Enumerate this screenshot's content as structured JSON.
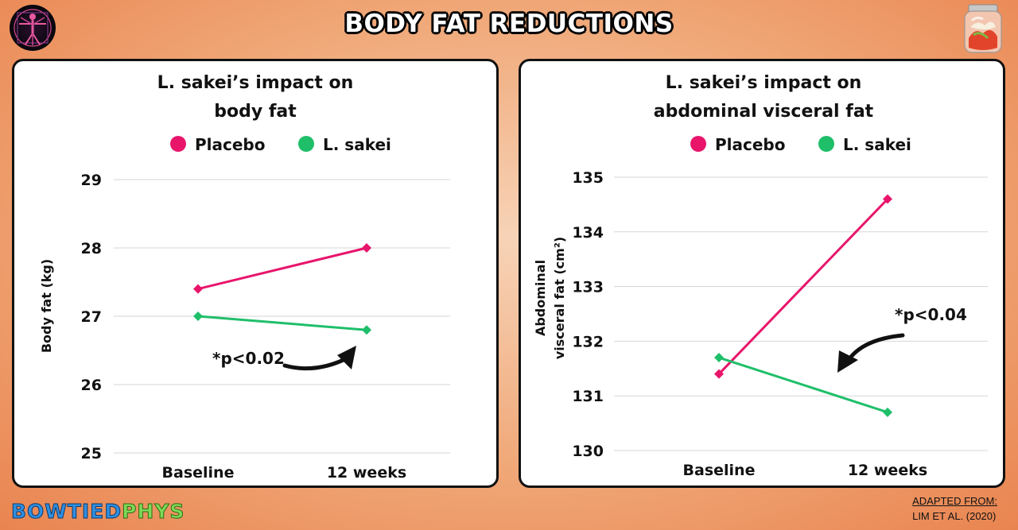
{
  "page": {
    "title": "BODY FAT REDUCTIONS"
  },
  "colors": {
    "placebo": "#e8156b",
    "lsakei": "#1fbf6a"
  },
  "branding": {
    "part1": "BOWTIED",
    "part2": "PHYS"
  },
  "credit": {
    "line1": "ADAPTED FROM:",
    "line2": "LIM ET AL. (2020)"
  },
  "chart_data": [
    {
      "type": "line",
      "title_lines": [
        "L. sakei’s impact on",
        "body fat"
      ],
      "categories": [
        "Baseline",
        "12 weeks"
      ],
      "series": [
        {
          "name": "Placebo",
          "values": [
            27.4,
            28.0
          ]
        },
        {
          "name": "L. sakei",
          "values": [
            27.0,
            26.8
          ]
        }
      ],
      "ylabel_lines": [
        "Body fat (kg)"
      ],
      "xlabel": "",
      "ylim": [
        25,
        29
      ],
      "yticks": [
        25,
        26,
        27,
        28,
        29
      ],
      "grid": true,
      "legend": "top",
      "annotation": "*p<0.02"
    },
    {
      "type": "line",
      "title_lines": [
        "L. sakei’s impact on",
        "abdominal visceral fat"
      ],
      "categories": [
        "Baseline",
        "12 weeks"
      ],
      "series": [
        {
          "name": "Placebo",
          "values": [
            131.4,
            134.6
          ]
        },
        {
          "name": "L. sakei",
          "values": [
            131.7,
            130.7
          ]
        }
      ],
      "ylabel_lines": [
        "Abdominal",
        "visceral fat (cm²)"
      ],
      "xlabel": "",
      "ylim": [
        130,
        135
      ],
      "yticks": [
        130,
        131,
        132,
        133,
        134,
        135
      ],
      "grid": true,
      "legend": "top",
      "annotation": "*p<0.04"
    }
  ]
}
